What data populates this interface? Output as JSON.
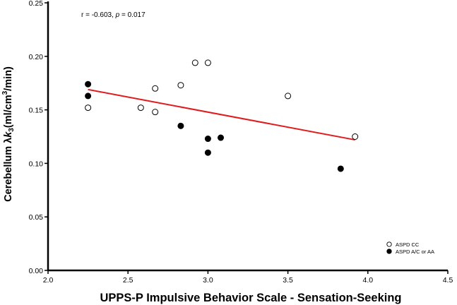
{
  "chart_data": {
    "type": "scatter",
    "xlabel": "UPPS-P Impulsive Behavior Scale - Sensation-Seeking",
    "ylabel_parts": [
      "Cerebellum λ",
      "k",
      "3",
      "(ml/cm",
      "3",
      "/min)"
    ],
    "xlim": [
      2.0,
      4.5
    ],
    "ylim": [
      0.0,
      0.25
    ],
    "xticks": [
      "2.0",
      "2.5",
      "3.0",
      "3.5",
      "4.0",
      "4.5"
    ],
    "yticks": [
      "0.00",
      "0.05",
      "0.10",
      "0.15",
      "0.20",
      "0.25"
    ],
    "annotation": {
      "r_text": "r = -0.603, ",
      "p_symbol": "p",
      "p_text": " = 0.017"
    },
    "series": [
      {
        "name": "ASPD CC",
        "marker": "open-circle",
        "points": [
          [
            2.25,
            0.152
          ],
          [
            2.58,
            0.152
          ],
          [
            2.67,
            0.148
          ],
          [
            2.67,
            0.17
          ],
          [
            2.83,
            0.173
          ],
          [
            2.92,
            0.194
          ],
          [
            3.0,
            0.194
          ],
          [
            3.5,
            0.163
          ],
          [
            3.92,
            0.125
          ]
        ]
      },
      {
        "name": "ASPD A/C or AA",
        "marker": "filled-circle",
        "points": [
          [
            2.25,
            0.174
          ],
          [
            2.25,
            0.163
          ],
          [
            2.83,
            0.135
          ],
          [
            3.0,
            0.123
          ],
          [
            3.08,
            0.124
          ],
          [
            3.0,
            0.11
          ],
          [
            3.83,
            0.095
          ]
        ]
      }
    ],
    "fit_line": {
      "x": [
        2.25,
        3.92
      ],
      "y": [
        0.169,
        0.122
      ],
      "color": "#e31a1c"
    },
    "legend_position": "bottom-right",
    "grid": false
  }
}
